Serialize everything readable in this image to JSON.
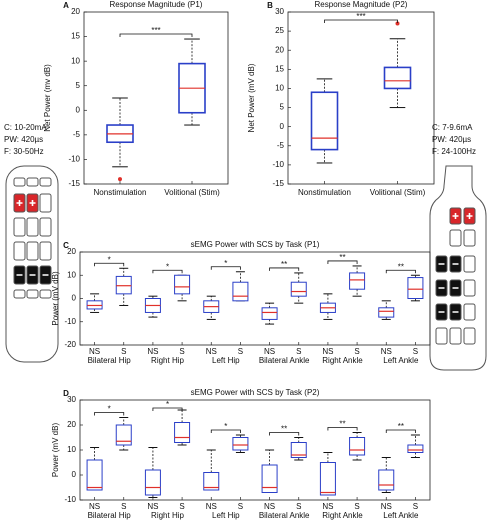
{
  "chart_data": [
    {
      "type": "box",
      "panel": "A",
      "title": "Response Magnitude (P1)",
      "y_label": "Net Power (mv dB)",
      "categories": [
        "Nonstimulation",
        "Volitional (Stim)"
      ],
      "boxes": [
        {
          "min": -11.5,
          "q1": -6.5,
          "median": -4.8,
          "q3": -3,
          "max": 2.5,
          "outliers": [
            -14
          ]
        },
        {
          "min": -3,
          "q1": -0.5,
          "median": 4.5,
          "q3": 9.5,
          "max": 14.5,
          "outliers": []
        }
      ],
      "significance": [
        "***"
      ],
      "box_color": "#2a3fc8",
      "median_color": "#e0302a",
      "ylim": [
        -15,
        20
      ],
      "yticks": [
        -15,
        -10,
        -5,
        0,
        5,
        10,
        15,
        20
      ]
    },
    {
      "type": "box",
      "panel": "B",
      "title": "Response Magnitude (P2)",
      "y_label": "Net Power (mV dB)",
      "categories": [
        "Nonstimulation",
        "Volitional (Stim)"
      ],
      "boxes": [
        {
          "min": -9.5,
          "q1": -6,
          "median": -3,
          "q3": 9,
          "max": 12.5,
          "outliers": []
        },
        {
          "min": 5,
          "q1": 10,
          "median": 12,
          "q3": 15.5,
          "max": 23,
          "outliers": [
            27
          ]
        }
      ],
      "significance": [
        "***"
      ],
      "box_color": "#2a3fc8",
      "median_color": "#e0302a",
      "ylim": [
        -15,
        30
      ],
      "yticks": [
        -15,
        -10,
        -5,
        0,
        5,
        10,
        15,
        20,
        25,
        30
      ]
    },
    {
      "type": "box",
      "panel": "C",
      "title": "sEMG Power with SCS by Task (P1)",
      "y_label": "Power (mV dB)",
      "categories": [
        "NS",
        "S",
        "NS",
        "S",
        "NS",
        "S",
        "NS",
        "S",
        "NS",
        "S",
        "NS",
        "S"
      ],
      "groups": [
        "Bilateral Hip",
        "Right Hip",
        "Left Hip",
        "Bilateral Ankle",
        "Right Ankle",
        "Left Ankle"
      ],
      "boxes": [
        {
          "min": -6,
          "q1": -4.5,
          "median": -3,
          "q3": -1,
          "max": 2,
          "outliers": []
        },
        {
          "min": -3,
          "q1": 2,
          "median": 5.5,
          "q3": 9.5,
          "max": 13,
          "outliers": []
        },
        {
          "min": -8,
          "q1": -6,
          "median": -3,
          "q3": 0,
          "max": 1,
          "outliers": []
        },
        {
          "min": -1,
          "q1": 2,
          "median": 5,
          "q3": 10,
          "max": 10,
          "outliers": []
        },
        {
          "min": -9,
          "q1": -6,
          "median": -3.5,
          "q3": -1,
          "max": 1,
          "outliers": []
        },
        {
          "min": -1,
          "q1": -1,
          "median": 1,
          "q3": 7,
          "max": 11.5,
          "outliers": []
        },
        {
          "min": -11,
          "q1": -9,
          "median": -6,
          "q3": -4,
          "max": -2,
          "outliers": []
        },
        {
          "min": -2,
          "q1": 1,
          "median": 3,
          "q3": 7,
          "max": 11,
          "outliers": []
        },
        {
          "min": -9,
          "q1": -6,
          "median": -4,
          "q3": -2,
          "max": 2,
          "outliers": []
        },
        {
          "min": 1,
          "q1": 4,
          "median": 8,
          "q3": 11,
          "max": 14,
          "outliers": []
        },
        {
          "min": -9,
          "q1": -8,
          "median": -5.5,
          "q3": -4,
          "max": -1,
          "outliers": []
        },
        {
          "min": -1,
          "q1": 0,
          "median": 4,
          "q3": 9,
          "max": 10,
          "outliers": []
        }
      ],
      "significance": [
        "*",
        "*",
        "*",
        "**",
        "**",
        "**"
      ],
      "box_color": "#2a3fc8",
      "median_color": "#e0302a",
      "ylim": [
        -20,
        20
      ],
      "yticks": [
        -20,
        -10,
        0,
        10,
        20
      ]
    },
    {
      "type": "box",
      "panel": "D",
      "title": "sEMG Power with SCS by Task (P2)",
      "y_label": "Power (mV dB)",
      "categories": [
        "NS",
        "S",
        "NS",
        "S",
        "NS",
        "S",
        "NS",
        "S",
        "NS",
        "S",
        "NS",
        "S"
      ],
      "groups": [
        "Bilateral Hip",
        "Right Hip",
        "Left Hip",
        "Bilateral Ankle",
        "Right Ankle",
        "Left Ankle"
      ],
      "boxes": [
        {
          "min": -6,
          "q1": -6,
          "median": -5,
          "q3": 6,
          "max": 11,
          "outliers": []
        },
        {
          "min": 10,
          "q1": 12,
          "median": 13.5,
          "q3": 20,
          "max": 23,
          "outliers": []
        },
        {
          "min": -9,
          "q1": -8,
          "median": -5,
          "q3": 2,
          "max": 11,
          "outliers": []
        },
        {
          "min": 12,
          "q1": 13,
          "median": 15,
          "q3": 21,
          "max": 26,
          "outliers": []
        },
        {
          "min": -6,
          "q1": -6,
          "median": -5,
          "q3": 1,
          "max": 10,
          "outliers": []
        },
        {
          "min": 9,
          "q1": 10,
          "median": 12,
          "q3": 15,
          "max": 16,
          "outliers": []
        },
        {
          "min": -7,
          "q1": -7,
          "median": -5,
          "q3": 4,
          "max": 10,
          "outliers": []
        },
        {
          "min": 6,
          "q1": 7,
          "median": 8,
          "q3": 13,
          "max": 15,
          "outliers": []
        },
        {
          "min": -8,
          "q1": -8,
          "median": -7,
          "q3": 5,
          "max": 9,
          "outliers": []
        },
        {
          "min": 6,
          "q1": 8,
          "median": 10,
          "q3": 15,
          "max": 17,
          "outliers": []
        },
        {
          "min": -7,
          "q1": -6,
          "median": -4,
          "q3": 2,
          "max": 7,
          "outliers": []
        },
        {
          "min": 7,
          "q1": 9,
          "median": 10,
          "q3": 12,
          "max": 16,
          "outliers": []
        }
      ],
      "significance": [
        "*",
        "*",
        "*",
        "**",
        "**",
        "**"
      ],
      "box_color": "#2a3fc8",
      "median_color": "#e0302a",
      "ylim": [
        -10,
        30
      ],
      "yticks": [
        -10,
        0,
        10,
        20,
        30
      ]
    }
  ],
  "stimulation": [
    {
      "lines": [
        "C: 10-20mA",
        "PW: 420µs",
        "F: 30-50Hz"
      ]
    },
    {
      "lines": [
        "C: 7-9.6mA",
        "PW: 420µs",
        "F: 24-100Hz"
      ]
    }
  ]
}
